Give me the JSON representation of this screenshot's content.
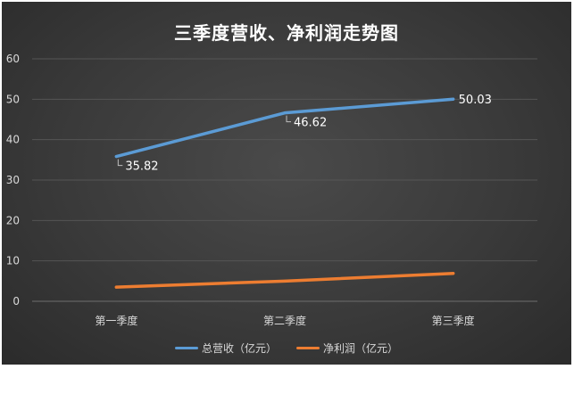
{
  "chart_data": {
    "type": "line",
    "title": "三季度营收、净利润走势图",
    "categories": [
      "第一季度",
      "第二季度",
      "第三季度"
    ],
    "ylim": [
      0,
      60
    ],
    "yticks": [
      "0",
      "10",
      "20",
      "30",
      "40",
      "50",
      "60"
    ],
    "grid": true,
    "legend_position": "bottom",
    "series": [
      {
        "name": "总营收（亿元）",
        "values": [
          35.82,
          46.62,
          50.03
        ],
        "color": "#5b9bd5",
        "data_labels": [
          "35.82",
          "46.62",
          "50.03"
        ]
      },
      {
        "name": "净利润（亿元）",
        "values": [
          3.5,
          5.0,
          6.9
        ],
        "color": "#ed7d31",
        "data_labels": null
      }
    ]
  }
}
